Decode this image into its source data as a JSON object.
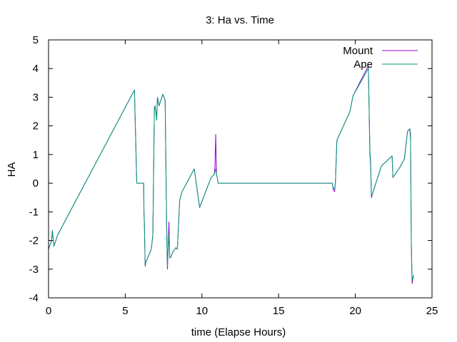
{
  "chart_data": {
    "type": "line",
    "title": "3: Ha vs. Time",
    "xlabel": "time (Elapse Hours)",
    "ylabel": "HA",
    "xlim": [
      0,
      25
    ],
    "ylim": [
      -4,
      5
    ],
    "xticks": [
      0,
      5,
      10,
      15,
      20,
      25
    ],
    "yticks": [
      -4,
      -3,
      -2,
      -1,
      0,
      1,
      2,
      3,
      4,
      5
    ],
    "grid": false,
    "legend_position": "top-right",
    "series": [
      {
        "name": "Mount",
        "color": "#9400d3",
        "x": [
          0,
          0.2,
          0.25,
          0.35,
          0.6,
          5.6,
          5.75,
          6.2,
          6.22,
          6.25,
          6.3,
          6.35,
          6.7,
          6.8,
          6.9,
          6.95,
          7.05,
          7.1,
          7.2,
          7.45,
          7.6,
          7.7,
          7.75,
          7.8,
          7.85,
          7.9,
          7.95,
          8.0,
          8.1,
          8.3,
          8.4,
          8.55,
          8.7,
          9.5,
          9.85,
          9.95,
          10.6,
          10.8,
          10.85,
          10.9,
          10.95,
          11.0,
          11.05,
          11.1,
          11.2,
          18.5,
          18.55,
          18.65,
          18.7,
          18.8,
          19.65,
          19.85,
          20.85,
          20.95,
          21.0,
          21.05,
          21.1,
          21.7,
          22.4,
          22.45,
          22.9,
          23.2,
          23.4,
          23.55,
          23.6,
          23.65,
          23.7,
          23.8
        ],
        "y": [
          -2.3,
          -2.0,
          -1.65,
          -2.2,
          -1.8,
          3.25,
          0.0,
          0.0,
          -1.0,
          -1.5,
          -2.9,
          -2.75,
          -2.3,
          -1.8,
          2.65,
          2.7,
          2.2,
          3.0,
          2.7,
          3.1,
          2.9,
          -1.6,
          -3.0,
          -2.2,
          -1.35,
          -2.6,
          -2.6,
          -2.55,
          -2.4,
          -2.25,
          -2.3,
          -0.6,
          -0.3,
          0.5,
          -0.85,
          -0.7,
          0.2,
          0.3,
          0.6,
          1.7,
          0.3,
          0.2,
          0.0,
          0.0,
          0.0,
          0.0,
          -0.2,
          -0.3,
          0.0,
          1.5,
          2.5,
          3.05,
          4.1,
          1.0,
          0.6,
          -0.5,
          -0.4,
          0.6,
          0.95,
          0.2,
          0.55,
          0.85,
          1.8,
          1.9,
          1.7,
          -2.1,
          -3.5,
          -3.2
        ]
      },
      {
        "name": "Ape",
        "color": "#009e73",
        "x": [
          0,
          0.2,
          0.25,
          0.35,
          0.6,
          5.6,
          5.75,
          6.2,
          6.22,
          6.25,
          6.3,
          6.35,
          6.7,
          6.8,
          6.9,
          6.95,
          7.05,
          7.1,
          7.2,
          7.45,
          7.6,
          7.7,
          7.75,
          7.8,
          7.85,
          7.9,
          7.95,
          8.0,
          8.1,
          8.3,
          8.4,
          8.55,
          8.7,
          9.5,
          9.85,
          9.95,
          10.6,
          10.8,
          10.85,
          10.9,
          10.95,
          11.0,
          11.05,
          11.1,
          11.2,
          18.5,
          18.55,
          18.65,
          18.7,
          18.8,
          19.65,
          19.85,
          20.85,
          20.95,
          21.0,
          21.05,
          21.1,
          21.7,
          22.4,
          22.45,
          22.9,
          23.2,
          23.4,
          23.55,
          23.6,
          23.65,
          23.7,
          23.8
        ],
        "y": [
          -2.3,
          -2.0,
          -1.65,
          -2.2,
          -1.8,
          3.25,
          0.0,
          0.0,
          -1.0,
          -1.4,
          -2.85,
          -2.75,
          -2.3,
          -1.8,
          2.6,
          2.7,
          2.2,
          3.0,
          2.7,
          3.1,
          2.9,
          -1.5,
          -2.9,
          -2.2,
          -1.8,
          -2.6,
          -2.6,
          -2.55,
          -2.4,
          -2.25,
          -2.3,
          -0.6,
          -0.3,
          0.5,
          -0.85,
          -0.7,
          0.2,
          0.3,
          0.4,
          0.5,
          0.3,
          0.2,
          0.0,
          0.0,
          0.0,
          0.0,
          -0.15,
          -0.2,
          0.0,
          1.5,
          2.5,
          3.05,
          4.0,
          1.2,
          0.7,
          -0.4,
          -0.4,
          0.6,
          0.95,
          0.2,
          0.55,
          0.85,
          1.8,
          1.9,
          1.5,
          -2.0,
          -3.4,
          -3.2
        ]
      }
    ]
  }
}
